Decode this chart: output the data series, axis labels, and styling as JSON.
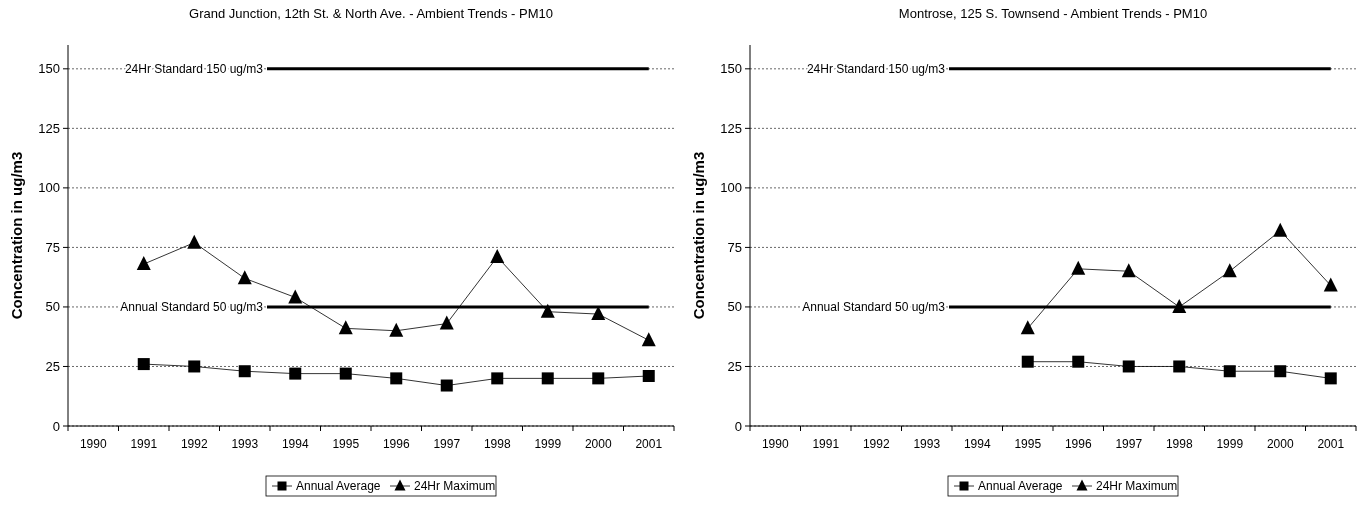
{
  "chart_data": [
    {
      "type": "line",
      "title": "Grand Junction, 12th St. & North Ave. - Ambient Trends - PM10",
      "ylabel": "Concentration in ug/m3",
      "categories": [
        "1990",
        "1991",
        "1992",
        "1993",
        "1994",
        "1995",
        "1996",
        "1997",
        "1998",
        "1999",
        "2000",
        "2001"
      ],
      "series": [
        {
          "name": "Annual Average",
          "color": "#000000",
          "marker": "square",
          "values": [
            null,
            26,
            25,
            23,
            22,
            22,
            20,
            17,
            20,
            20,
            20,
            21
          ]
        },
        {
          "name": "24Hr Maximum",
          "color": "#000000",
          "marker": "triangle",
          "values": [
            null,
            68,
            77,
            62,
            54,
            41,
            40,
            43,
            71,
            48,
            47,
            36
          ]
        }
      ],
      "ylim": [
        0,
        160
      ],
      "yticks": [
        0,
        25,
        50,
        75,
        100,
        125,
        150
      ],
      "grid": "y",
      "legend": "bottom",
      "line_style": "solid",
      "ref_lines": [
        {
          "axis": "y",
          "value": 150,
          "label": "24Hr Standard 150 ug/m3",
          "color": "#000000"
        },
        {
          "axis": "y",
          "value": 50,
          "label": "Annual Standard 50 ug/m3",
          "color": "#000000"
        }
      ]
    },
    {
      "type": "line",
      "title": "Montrose, 125 S. Townsend - Ambient Trends - PM10",
      "ylabel": "Concentration in ug/m3",
      "categories": [
        "1990",
        "1991",
        "1992",
        "1993",
        "1994",
        "1995",
        "1996",
        "1997",
        "1998",
        "1999",
        "2000",
        "2001"
      ],
      "series": [
        {
          "name": "Annual Average",
          "color": "#000000",
          "marker": "square",
          "values": [
            null,
            null,
            null,
            null,
            null,
            27,
            27,
            25,
            25,
            23,
            23,
            20
          ]
        },
        {
          "name": "24Hr Maximum",
          "color": "#000000",
          "marker": "triangle",
          "values": [
            null,
            null,
            null,
            null,
            null,
            41,
            66,
            65,
            50,
            65,
            82,
            59
          ]
        }
      ],
      "ylim": [
        0,
        160
      ],
      "yticks": [
        0,
        25,
        50,
        75,
        100,
        125,
        150
      ],
      "grid": "y",
      "legend": "bottom",
      "line_style": "solid",
      "ref_lines": [
        {
          "axis": "y",
          "value": 150,
          "label": "24Hr Standard 150 ug/m3",
          "color": "#000000"
        },
        {
          "axis": "y",
          "value": 50,
          "label": "Annual Standard 50 ug/m3",
          "color": "#000000"
        }
      ]
    }
  ]
}
